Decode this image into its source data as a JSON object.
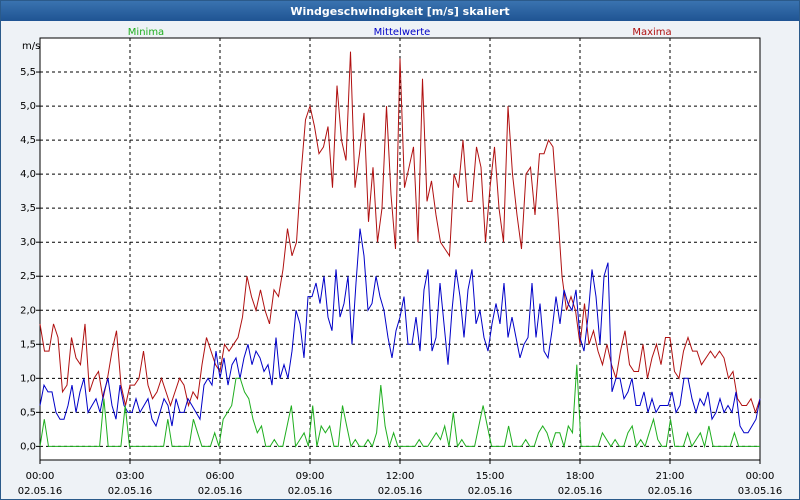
{
  "window": {
    "title": "Windgeschwindigkeit [m/s] skaliert"
  },
  "legend": {
    "min": "Minima",
    "mean": "Mittelwerte",
    "max": "Maxima"
  },
  "colors": {
    "min": "#1fae1f",
    "mean": "#0000c8",
    "max": "#b01010",
    "grid": "#000000",
    "title_bg": "#2a5f9e"
  },
  "chart_data": {
    "type": "line",
    "title": "Windgeschwindigkeit [m/s] skaliert",
    "ylabel": "m/s",
    "xlabel": "",
    "ylim": [
      -0.2,
      6.0
    ],
    "xlim": [
      0,
      24
    ],
    "yticks": [
      0.0,
      0.5,
      1.0,
      1.5,
      2.0,
      2.5,
      3.0,
      3.5,
      4.0,
      4.5,
      5.0,
      5.5
    ],
    "ytick_labels": [
      "0,0",
      "0,5",
      "1,0",
      "1,5",
      "2,0",
      "2,5",
      "3,0",
      "3,5",
      "4,0",
      "4,5",
      "5,0",
      "5,5"
    ],
    "xticks": [
      {
        "time": "00:00",
        "date": "02.05.16"
      },
      {
        "time": "03:00",
        "date": "02.05.16"
      },
      {
        "time": "06:00",
        "date": "02.05.16"
      },
      {
        "time": "09:00",
        "date": "02.05.16"
      },
      {
        "time": "12:00",
        "date": "02.05.16"
      },
      {
        "time": "15:00",
        "date": "02.05.16"
      },
      {
        "time": "18:00",
        "date": "02.05.16"
      },
      {
        "time": "21:00",
        "date": "02.05.16"
      },
      {
        "time": "00:00",
        "date": "03.05.16"
      }
    ],
    "series": [
      {
        "name": "Maxima",
        "color": "#b01010",
        "values": [
          1.8,
          1.4,
          1.4,
          1.8,
          1.6,
          0.8,
          0.9,
          1.6,
          1.3,
          1.2,
          1.8,
          0.8,
          1.0,
          1.1,
          0.7,
          1.0,
          1.4,
          1.7,
          0.9,
          0.6,
          0.9,
          0.9,
          1.0,
          1.4,
          0.9,
          0.7,
          0.8,
          1.0,
          0.8,
          0.6,
          0.8,
          1.0,
          0.9,
          0.6,
          0.8,
          0.7,
          1.2,
          1.6,
          1.4,
          1.2,
          1.1,
          1.5,
          1.4,
          1.5,
          1.6,
          1.9,
          2.5,
          2.2,
          2.0,
          2.3,
          2.0,
          1.8,
          2.3,
          2.2,
          2.6,
          3.2,
          2.8,
          3.0,
          4.0,
          4.8,
          5.0,
          4.7,
          4.3,
          4.4,
          4.7,
          3.8,
          5.3,
          4.5,
          4.2,
          5.8,
          3.8,
          4.3,
          4.9,
          3.3,
          4.1,
          3.0,
          3.5,
          5.0,
          3.7,
          2.9,
          5.7,
          3.8,
          4.1,
          4.4,
          3.0,
          5.4,
          3.6,
          3.9,
          3.4,
          3.0,
          2.9,
          2.8,
          4.0,
          3.8,
          4.5,
          3.6,
          3.6,
          4.4,
          4.1,
          3.0,
          3.8,
          4.4,
          3.5,
          3.0,
          5.0,
          4.0,
          3.4,
          2.9,
          4.0,
          4.1,
          3.4,
          4.3,
          4.3,
          4.5,
          4.4,
          3.5,
          2.5,
          2.0,
          2.2,
          2.0,
          1.5,
          2.1,
          1.5,
          1.7,
          1.4,
          1.2,
          1.5,
          1.2,
          1.0,
          1.4,
          1.7,
          1.2,
          1.1,
          1.1,
          1.5,
          1.0,
          1.3,
          1.5,
          1.2,
          1.6,
          1.6,
          1.1,
          1.0,
          1.4,
          1.6,
          1.4,
          1.4,
          1.2,
          1.3,
          1.4,
          1.3,
          1.4,
          1.3,
          1.0,
          1.1,
          0.7,
          0.6,
          0.6,
          0.7,
          0.5,
          0.7
        ]
      },
      {
        "name": "Mittelwerte",
        "color": "#0000c8",
        "values": [
          0.6,
          0.9,
          0.8,
          0.8,
          0.5,
          0.4,
          0.4,
          0.6,
          0.9,
          0.5,
          0.8,
          1.0,
          0.5,
          0.6,
          0.7,
          0.5,
          0.8,
          1.0,
          0.6,
          0.4,
          0.9,
          0.6,
          0.5,
          0.5,
          0.7,
          0.5,
          0.6,
          0.7,
          0.4,
          0.3,
          0.5,
          0.7,
          0.6,
          0.3,
          0.7,
          0.5,
          0.5,
          0.7,
          0.6,
          0.5,
          0.4,
          0.9,
          1.0,
          0.9,
          1.4,
          1.0,
          1.3,
          0.9,
          1.2,
          1.3,
          1.0,
          1.3,
          1.5,
          1.2,
          1.4,
          1.3,
          1.1,
          1.2,
          0.9,
          1.6,
          1.0,
          1.2,
          1.0,
          1.4,
          2.0,
          1.8,
          1.3,
          2.2,
          2.2,
          2.4,
          2.1,
          2.5,
          1.9,
          1.7,
          2.6,
          1.9,
          2.1,
          2.5,
          1.5,
          2.4,
          3.2,
          2.8,
          2.0,
          2.1,
          2.5,
          2.2,
          2.0,
          1.6,
          1.3,
          1.7,
          1.9,
          2.2,
          1.5,
          1.5,
          1.9,
          1.4,
          2.3,
          2.6,
          1.4,
          1.6,
          2.4,
          1.8,
          1.2,
          2.0,
          2.6,
          2.2,
          1.6,
          2.3,
          2.6,
          1.8,
          2.0,
          1.6,
          1.4,
          1.8,
          2.1,
          1.8,
          2.4,
          1.6,
          1.9,
          1.6,
          1.3,
          1.5,
          1.6,
          2.4,
          1.6,
          2.1,
          1.4,
          1.3,
          1.7,
          2.2,
          1.8,
          2.3,
          2.1,
          2.0,
          2.3,
          1.6,
          1.4,
          1.9,
          2.6,
          2.2,
          1.5,
          2.5,
          2.7,
          0.8,
          1.0,
          1.0,
          0.7,
          0.8,
          1.0,
          0.6,
          0.6,
          0.8,
          0.5,
          0.7,
          0.5,
          0.6,
          0.6,
          0.6,
          0.8,
          0.5,
          0.6,
          1.0,
          1.0,
          0.7,
          0.5,
          0.7,
          0.6,
          0.8,
          0.4,
          0.5,
          0.7,
          0.5,
          0.6,
          0.5,
          0.8,
          0.3,
          0.2,
          0.2,
          0.3,
          0.4,
          0.7
        ]
      },
      {
        "name": "Minima",
        "color": "#1fae1f",
        "values": [
          0.0,
          0.4,
          0.0,
          0.0,
          0.0,
          0.0,
          0.0,
          0.0,
          0.0,
          0.0,
          0.0,
          0.0,
          0.0,
          0.0,
          0.0,
          0.7,
          0.0,
          0.0,
          0.0,
          0.0,
          0.6,
          0.0,
          0.0,
          0.0,
          0.0,
          0.0,
          0.0,
          0.0,
          0.0,
          0.0,
          0.4,
          0.0,
          0.0,
          0.0,
          0.0,
          0.0,
          0.4,
          0.2,
          0.0,
          0.0,
          0.0,
          0.2,
          0.0,
          0.4,
          0.5,
          0.6,
          1.0,
          1.0,
          0.8,
          0.7,
          0.4,
          0.2,
          0.3,
          0.0,
          0.0,
          0.1,
          0.0,
          0.0,
          0.3,
          0.6,
          0.0,
          0.1,
          0.2,
          0.0,
          0.6,
          0.0,
          0.3,
          0.2,
          0.3,
          0.0,
          0.0,
          0.6,
          0.3,
          0.0,
          0.1,
          0.0,
          0.0,
          0.1,
          0.0,
          0.2,
          0.9,
          0.3,
          0.0,
          0.2,
          0.0,
          0.0,
          0.0,
          0.0,
          0.0,
          0.1,
          0.0,
          0.0,
          0.1,
          0.2,
          0.1,
          0.3,
          0.0,
          0.5,
          0.0,
          0.1,
          0.0,
          0.0,
          0.0,
          0.3,
          0.6,
          0.3,
          0.0,
          0.0,
          0.0,
          0.0,
          0.3,
          0.0,
          0.0,
          0.0,
          0.1,
          0.0,
          0.0,
          0.2,
          0.3,
          0.2,
          0.0,
          0.2,
          0.2,
          0.0,
          0.3,
          0.2,
          1.2,
          0.0,
          0.0,
          0.0,
          0.0,
          0.0,
          0.2,
          0.1,
          0.0,
          0.1,
          0.0,
          0.0,
          0.2,
          0.3,
          0.0,
          0.1,
          0.0,
          0.2,
          0.4,
          0.1,
          0.0,
          0.0,
          0.4,
          0.0,
          0.0,
          0.0,
          0.2,
          0.0,
          0.1,
          0.2,
          0.0,
          0.3,
          0.0,
          0.0,
          0.0,
          0.0,
          0.0,
          0.2,
          0.0,
          0.0,
          0.0,
          0.0,
          0.0,
          0.0
        ]
      }
    ]
  }
}
